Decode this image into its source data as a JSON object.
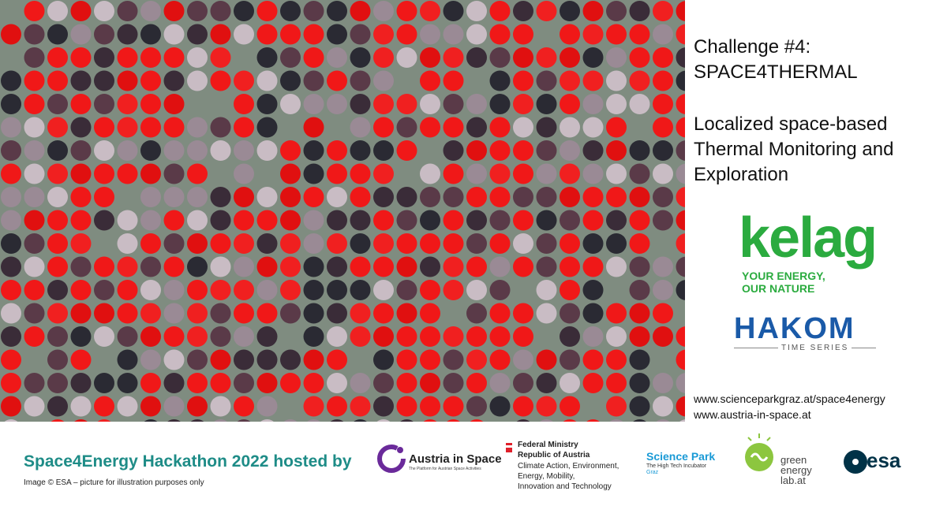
{
  "challenge": {
    "title_lines": [
      "Challenge #4:",
      "SPACE4THERMAL"
    ],
    "description_lines": [
      "Localized space-based",
      "Thermal Monitoring and",
      "Exploration"
    ]
  },
  "sponsors": {
    "kelag": {
      "name": "kelag",
      "tagline_lines": [
        "YOUR ENERGY,",
        "OUR NATURE"
      ]
    },
    "hakom": {
      "name": "HAKOM",
      "tagline": "TIME SERIES"
    }
  },
  "links": [
    "www.scienceparkgraz.at/space4energy",
    "www.austria-in-space.at"
  ],
  "footer": {
    "title": "Space4Energy Hackathon 2022 hosted by",
    "credit": "Image © ESA – picture for illustration purposes only"
  },
  "partners": {
    "austria_in_space": {
      "name": "Austria in Space",
      "tagline": "The Platform for Austrian Space Activities"
    },
    "ministry": {
      "lines": [
        "Federal Ministry",
        "Republic of Austria",
        "Climate Action, Environment,",
        "Energy, Mobility,",
        "Innovation and Technology"
      ]
    },
    "science_park": {
      "name": "Science Park",
      "tagline_lines": [
        "The High Tech Incubator",
        "Graz"
      ]
    },
    "green_energy_lab": {
      "lines": [
        "green",
        "energy",
        "lab.at"
      ]
    },
    "esa": {
      "name": "esa"
    }
  }
}
